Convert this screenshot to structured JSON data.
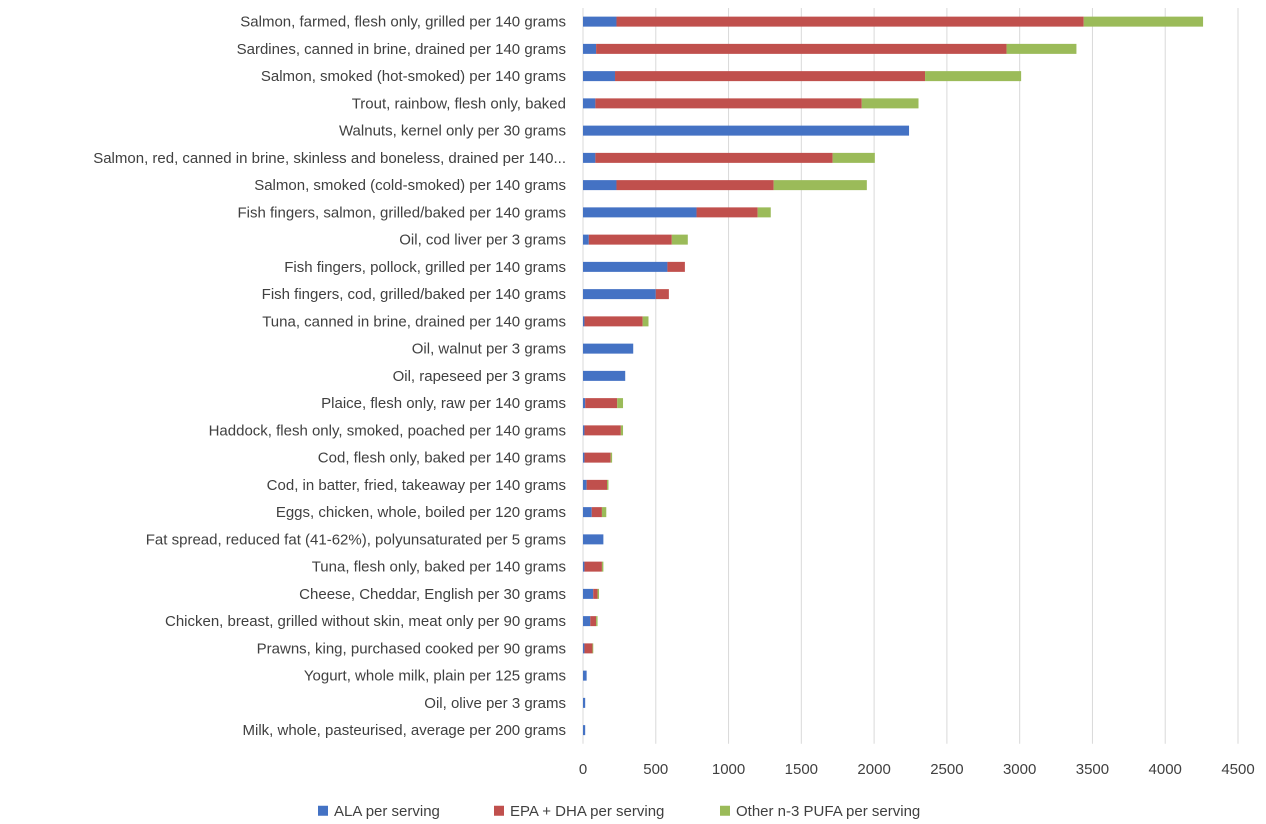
{
  "chart_data": {
    "type": "bar",
    "orientation": "horizontal",
    "stacked": true,
    "title": "",
    "xlabel": "",
    "ylabel": "",
    "xlim": [
      0,
      4500
    ],
    "x_ticks": [
      "0",
      "500",
      "1000",
      "1500",
      "2000",
      "2500",
      "3000",
      "3500",
      "4000",
      "4500"
    ],
    "grid": "vertical",
    "legend_position": "bottom",
    "colors": [
      "#4472c4",
      "#c0504d",
      "#9bbb59"
    ],
    "categories": [
      "Salmon, farmed, flesh only, grilled per 140 grams",
      "Sardines, canned in brine, drained per 140 grams",
      "Salmon, smoked (hot-smoked) per 140 grams",
      "Trout, rainbow, flesh only, baked",
      "Walnuts, kernel only per 30 grams",
      "Salmon, red, canned in brine, skinless and boneless, drained per 140...",
      "Salmon, smoked (cold-smoked) per 140 grams",
      "Fish fingers, salmon, grilled/baked per 140 grams",
      "Oil, cod liver per 3 grams",
      "Fish fingers, pollock, grilled per 140 grams",
      "Fish fingers, cod, grilled/baked per 140 grams",
      "Tuna, canned in brine, drained per 140 grams",
      "Oil, walnut per 3 grams",
      "Oil, rapeseed per 3 grams",
      "Plaice, flesh only, raw per 140 grams",
      "Haddock, flesh only, smoked, poached per 140 grams",
      "Cod, flesh only, baked per 140 grams",
      "Cod, in batter, fried, takeaway per 140 grams",
      "Eggs, chicken, whole, boiled per 120 grams",
      "Fat spread, reduced fat (41-62%), polyunsaturated per 5 grams",
      "Tuna, flesh only, baked per 140 grams",
      "Cheese, Cheddar, English per 30 grams",
      "Chicken, breast, grilled without skin, meat only per 90 grams",
      "Prawns, king, purchased cooked per 90 grams",
      "Yogurt, whole milk, plain per 125 grams",
      "Oil, olive per 3 grams",
      "Milk, whole, pasteurised, average per 200 grams"
    ],
    "series": [
      {
        "name": "ALA per serving",
        "values": [
          230,
          90,
          220,
          85,
          2240,
          85,
          230,
          780,
          40,
          580,
          500,
          10,
          345,
          290,
          15,
          10,
          10,
          25,
          60,
          140,
          10,
          70,
          50,
          10,
          25,
          15,
          15
        ]
      },
      {
        "name": "EPA + DHA per serving",
        "values": [
          3210,
          2820,
          2130,
          1830,
          0,
          1630,
          1080,
          420,
          570,
          120,
          90,
          400,
          0,
          0,
          220,
          250,
          180,
          140,
          70,
          0,
          120,
          30,
          40,
          55,
          0,
          0,
          0
        ]
      },
      {
        "name": "Other n-3 PUFA per serving",
        "values": [
          820,
          480,
          660,
          390,
          0,
          290,
          640,
          90,
          110,
          0,
          0,
          40,
          0,
          0,
          40,
          15,
          10,
          10,
          30,
          0,
          10,
          10,
          10,
          5,
          0,
          0,
          0
        ]
      }
    ]
  }
}
